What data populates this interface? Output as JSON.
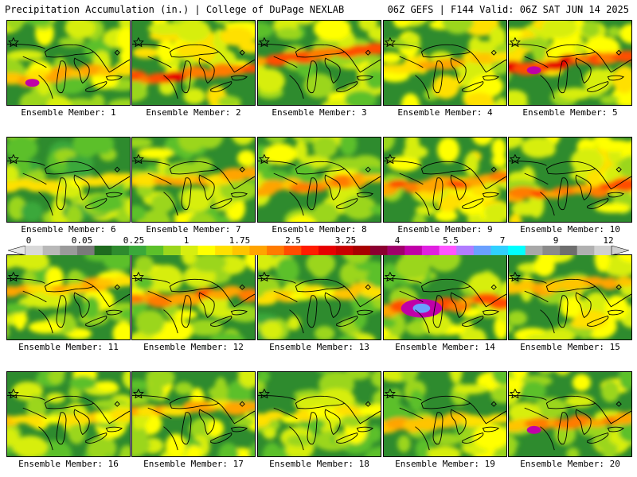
{
  "header": {
    "title": "Precipitation Accumulation (in.) | College of DuPage NEXLAB",
    "run_info": "06Z GEFS | F144 Valid: 06Z SAT JUN 14 2025"
  },
  "colorbar": {
    "tick_labels": [
      "0",
      "0.05",
      "0.25",
      "1",
      "1.75",
      "2.5",
      "3.25",
      "4",
      "5.5",
      "7",
      "9",
      "12"
    ],
    "colors": [
      "#d9d9d9",
      "#b8b8b8",
      "#9a9a9a",
      "#7a7a7a",
      "#1f6b1f",
      "#2e8b2e",
      "#3aa83a",
      "#5cc02a",
      "#9bd61c",
      "#d7ee10",
      "#ffff00",
      "#ffe000",
      "#ffc400",
      "#ffa400",
      "#ff7b00",
      "#ff4d00",
      "#ff1c00",
      "#e60000",
      "#c80000",
      "#a80000",
      "#8b0030",
      "#a0006a",
      "#c000a8",
      "#e020e0",
      "#ff55ff",
      "#b07cff",
      "#6aa0ff",
      "#30d0ff",
      "#00ffff",
      "#a8a8a8",
      "#8a8a8a",
      "#6e6e6e",
      "#b0b0b0",
      "#d0d0d0"
    ]
  },
  "members": [
    {
      "label": "Ensemble Member: 1"
    },
    {
      "label": "Ensemble Member: 2"
    },
    {
      "label": "Ensemble Member: 3"
    },
    {
      "label": "Ensemble Member: 4"
    },
    {
      "label": "Ensemble Member: 5"
    },
    {
      "label": "Ensemble Member: 6"
    },
    {
      "label": "Ensemble Member: 7"
    },
    {
      "label": "Ensemble Member: 8"
    },
    {
      "label": "Ensemble Member: 9"
    },
    {
      "label": "Ensemble Member: 10"
    },
    {
      "label": "Ensemble Member: 11"
    },
    {
      "label": "Ensemble Member: 12"
    },
    {
      "label": "Ensemble Member: 13"
    },
    {
      "label": "Ensemble Member: 14"
    },
    {
      "label": "Ensemble Member: 15"
    },
    {
      "label": "Ensemble Member: 16"
    },
    {
      "label": "Ensemble Member: 17"
    },
    {
      "label": "Ensemble Member: 18"
    },
    {
      "label": "Ensemble Member: 19"
    },
    {
      "label": "Ensemble Member: 20"
    }
  ]
}
